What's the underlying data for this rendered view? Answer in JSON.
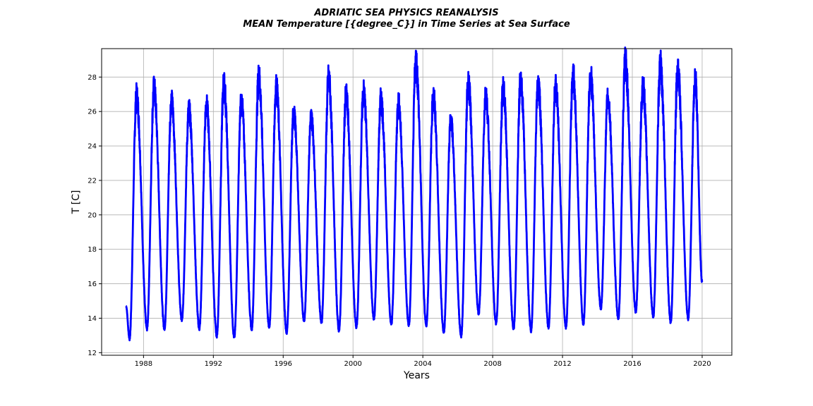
{
  "chart_data": {
    "type": "line",
    "title": "ADRIATIC SEA PHYSICS REANALYSIS",
    "subtitle": "MEAN Temperature [{degree_C}] in Time Series at Sea Surface",
    "xlabel": "Years",
    "ylabel": "T [C]",
    "xlim": [
      1985.6,
      2021.7
    ],
    "ylim": [
      11.85,
      29.65
    ],
    "x_ticks": [
      "1988",
      "1992",
      "1996",
      "2000",
      "2004",
      "2008",
      "2012",
      "2016",
      "2020"
    ],
    "y_ticks": [
      "12",
      "14",
      "16",
      "18",
      "20",
      "22",
      "24",
      "26",
      "28"
    ],
    "grid": true,
    "line_color": "#0000ff",
    "series": [
      {
        "x_start": 1987.0,
        "x_end": 2020.0,
        "annual_peaks": [
          {
            "x": 1987.6,
            "y": 26.9
          },
          {
            "x": 1988.6,
            "y": 27.3
          },
          {
            "x": 1989.6,
            "y": 26.6
          },
          {
            "x": 1990.6,
            "y": 26.1
          },
          {
            "x": 1991.6,
            "y": 26.4
          },
          {
            "x": 1992.6,
            "y": 27.6
          },
          {
            "x": 1993.6,
            "y": 26.6
          },
          {
            "x": 1994.6,
            "y": 28.0
          },
          {
            "x": 1995.6,
            "y": 27.4
          },
          {
            "x": 1996.6,
            "y": 25.9
          },
          {
            "x": 1997.6,
            "y": 25.7
          },
          {
            "x": 1998.6,
            "y": 27.9
          },
          {
            "x": 1999.6,
            "y": 26.9
          },
          {
            "x": 2000.6,
            "y": 27.1
          },
          {
            "x": 2001.6,
            "y": 26.7
          },
          {
            "x": 2002.6,
            "y": 26.5
          },
          {
            "x": 2003.6,
            "y": 28.8
          },
          {
            "x": 2004.6,
            "y": 26.9
          },
          {
            "x": 2005.6,
            "y": 25.5
          },
          {
            "x": 2006.6,
            "y": 27.6
          },
          {
            "x": 2007.6,
            "y": 26.9
          },
          {
            "x": 2008.6,
            "y": 27.3
          },
          {
            "x": 2009.6,
            "y": 27.8
          },
          {
            "x": 2010.6,
            "y": 27.6
          },
          {
            "x": 2011.6,
            "y": 27.5
          },
          {
            "x": 2012.6,
            "y": 28.1
          },
          {
            "x": 2013.6,
            "y": 28.1
          },
          {
            "x": 2014.6,
            "y": 26.8
          },
          {
            "x": 2015.6,
            "y": 28.8
          },
          {
            "x": 2016.6,
            "y": 27.5
          },
          {
            "x": 2017.6,
            "y": 28.6
          },
          {
            "x": 2018.6,
            "y": 28.4
          },
          {
            "x": 2019.6,
            "y": 27.9
          }
        ],
        "annual_troughs": [
          {
            "x": 1987.0,
            "y": 14.7
          },
          {
            "x": 1987.2,
            "y": 12.8
          },
          {
            "x": 1988.2,
            "y": 13.4
          },
          {
            "x": 1989.2,
            "y": 13.4
          },
          {
            "x": 1990.2,
            "y": 13.9
          },
          {
            "x": 1991.2,
            "y": 13.4
          },
          {
            "x": 1992.2,
            "y": 13.0
          },
          {
            "x": 1993.2,
            "y": 12.9
          },
          {
            "x": 1994.2,
            "y": 13.4
          },
          {
            "x": 1995.2,
            "y": 13.5
          },
          {
            "x": 1996.2,
            "y": 13.2
          },
          {
            "x": 1997.2,
            "y": 13.9
          },
          {
            "x": 1998.2,
            "y": 13.8
          },
          {
            "x": 1999.2,
            "y": 13.3
          },
          {
            "x": 2000.2,
            "y": 13.5
          },
          {
            "x": 2001.2,
            "y": 14.0
          },
          {
            "x": 2002.2,
            "y": 13.7
          },
          {
            "x": 2003.2,
            "y": 13.6
          },
          {
            "x": 2004.2,
            "y": 13.6
          },
          {
            "x": 2005.2,
            "y": 13.2
          },
          {
            "x": 2006.2,
            "y": 13.0
          },
          {
            "x": 2007.2,
            "y": 14.3
          },
          {
            "x": 2008.2,
            "y": 13.7
          },
          {
            "x": 2009.2,
            "y": 13.4
          },
          {
            "x": 2010.2,
            "y": 13.3
          },
          {
            "x": 2011.2,
            "y": 13.5
          },
          {
            "x": 2012.2,
            "y": 13.5
          },
          {
            "x": 2013.2,
            "y": 13.7
          },
          {
            "x": 2014.2,
            "y": 14.6
          },
          {
            "x": 2015.2,
            "y": 14.0
          },
          {
            "x": 2016.2,
            "y": 14.4
          },
          {
            "x": 2017.2,
            "y": 14.1
          },
          {
            "x": 2018.2,
            "y": 13.8
          },
          {
            "x": 2019.2,
            "y": 14.0
          },
          {
            "x": 2020.0,
            "y": 16.1
          }
        ]
      }
    ]
  }
}
